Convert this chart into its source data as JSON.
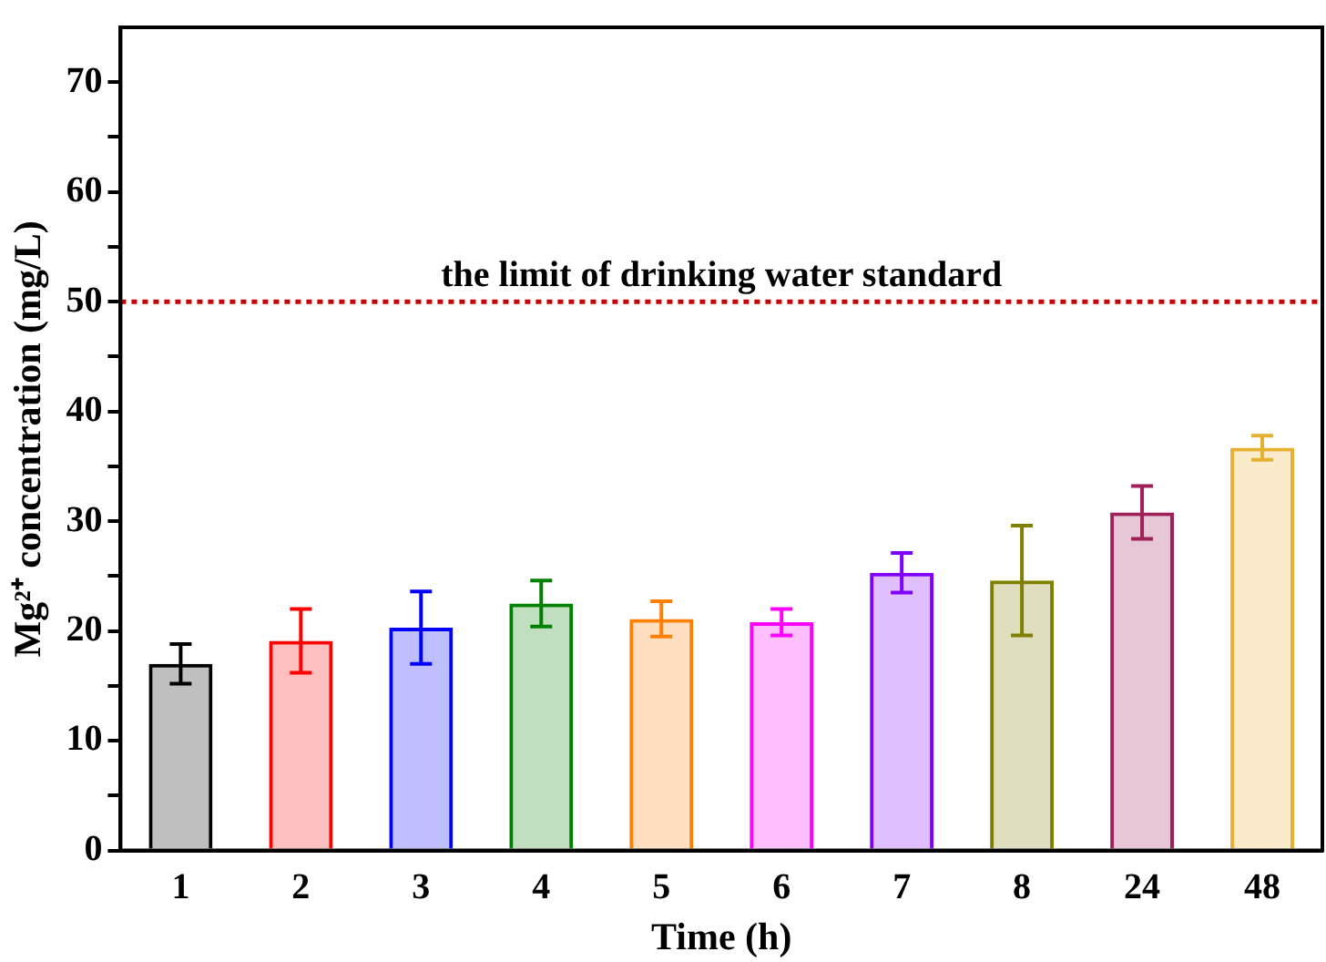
{
  "chart_data": {
    "type": "bar",
    "xlabel": "Time (h)",
    "ylabel": "Mg²⁺ concentration (mg/L)",
    "categories": [
      "1",
      "2",
      "3",
      "4",
      "5",
      "6",
      "7",
      "8",
      "24",
      "48"
    ],
    "values": [
      17.0,
      19.1,
      20.3,
      22.5,
      21.1,
      20.8,
      25.3,
      24.6,
      30.8,
      36.7
    ],
    "errors": [
      1.8,
      2.9,
      3.3,
      2.1,
      1.6,
      1.2,
      1.8,
      5.0,
      2.4,
      1.1
    ],
    "colors": [
      "#000000",
      "#ff0000",
      "#0000ff",
      "#008000",
      "#ff8000",
      "#ff00ff",
      "#8000ff",
      "#808000",
      "#a0205a",
      "#e6b030"
    ],
    "ylim": [
      0,
      75
    ],
    "yticks": [
      0,
      {
        "value": 5,
        "label": null
      },
      10,
      {
        "value": 15,
        "label": null
      },
      20,
      {
        "value": 25,
        "label": null
      },
      30,
      {
        "value": 35,
        "label": null
      },
      40,
      {
        "value": 45,
        "label": null
      },
      50,
      {
        "value": 55,
        "label": null
      },
      60,
      {
        "value": 65,
        "label": null
      },
      70
    ],
    "ref_lines": [
      {
        "axis": "y",
        "value": 50,
        "label": "the limit of drinking water standard",
        "color": "#cc0000",
        "line_style": "dotted"
      }
    ],
    "grid": false,
    "legend": false
  }
}
